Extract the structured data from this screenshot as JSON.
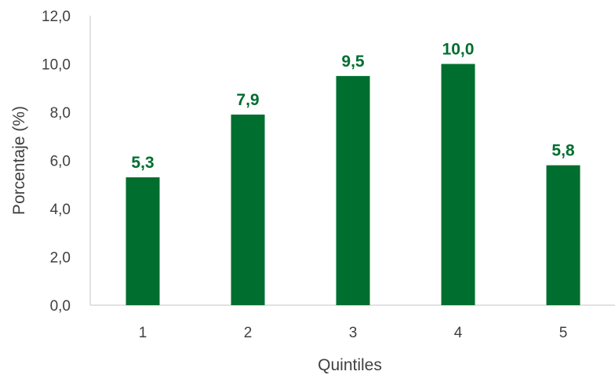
{
  "chart_data": {
    "type": "bar",
    "categories": [
      "1",
      "2",
      "3",
      "4",
      "5"
    ],
    "values": [
      5.3,
      7.9,
      9.5,
      10.0,
      5.8
    ],
    "data_labels": [
      "5,3",
      "7,9",
      "9,5",
      "10,0",
      "5,8"
    ],
    "title": "",
    "xlabel": "Quintiles",
    "ylabel": "Porcentaje (%)",
    "ylim": [
      0,
      12
    ],
    "yticks": [
      0,
      2,
      4,
      6,
      8,
      10,
      12
    ],
    "ytick_labels": [
      "0,0",
      "2,0",
      "4,0",
      "6,0",
      "8,0",
      "10,0",
      "12,0"
    ],
    "grid": false,
    "legend": "none",
    "colors": {
      "bar": "#006E2E",
      "label": "#006E2E",
      "axis": "#D9D9D9",
      "text": "#404040"
    }
  }
}
